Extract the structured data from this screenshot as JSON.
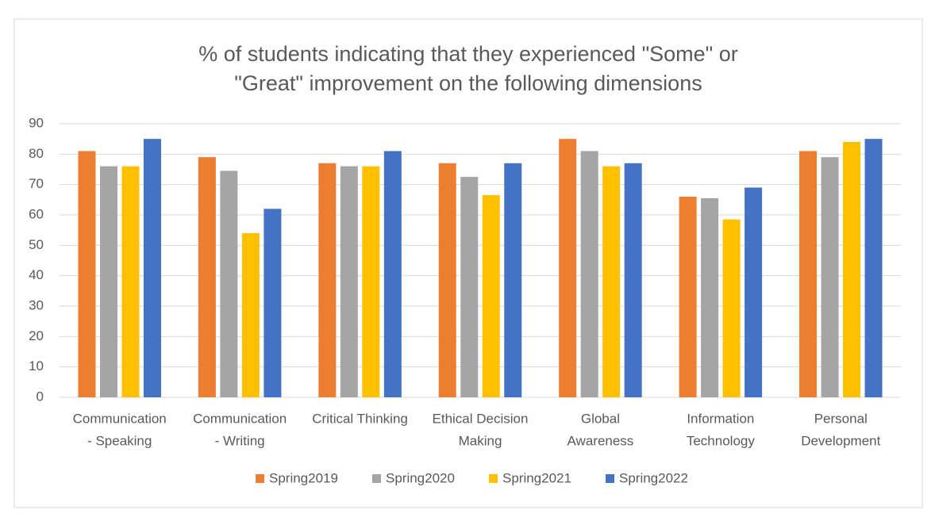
{
  "chart_data": {
    "type": "bar",
    "title": [
      "% of students indicating that they experienced \"Some\" or",
      "\"Great\" improvement on the following dimensions"
    ],
    "categories": [
      [
        "Communication",
        "- Speaking"
      ],
      [
        "Communication",
        "- Writing"
      ],
      [
        "Critical Thinking"
      ],
      [
        "Ethical Decision",
        "Making"
      ],
      [
        "Global",
        "Awareness"
      ],
      [
        "Information",
        "Technology"
      ],
      [
        "Personal",
        "Development"
      ]
    ],
    "series": [
      {
        "name": "Spring2019",
        "color": "#ED7D31",
        "values": [
          81,
          79,
          77,
          77,
          85,
          66,
          81
        ]
      },
      {
        "name": "Spring2020",
        "color": "#A5A5A5",
        "values": [
          76,
          74.5,
          76,
          72.5,
          81,
          65.5,
          79
        ]
      },
      {
        "name": "Spring2021",
        "color": "#FFC000",
        "values": [
          76,
          54,
          76,
          66.5,
          76,
          58.5,
          84
        ]
      },
      {
        "name": "Spring2022",
        "color": "#4472C4",
        "values": [
          85,
          62,
          81,
          77,
          77,
          69,
          85
        ]
      }
    ],
    "ylim": [
      0,
      90
    ],
    "yticks": [
      0,
      10,
      20,
      30,
      40,
      50,
      60,
      70,
      80,
      90
    ],
    "grid": true,
    "legend": "bottom"
  }
}
